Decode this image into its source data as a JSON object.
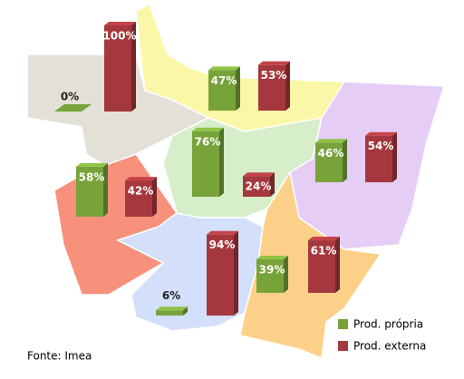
{
  "chart_data": {
    "type": "map-bar",
    "series": [
      {
        "name": "Prod. própria",
        "color": "#77a33a",
        "values": [
          0,
          47,
          76,
          46,
          58,
          6,
          39
        ],
        "value_labels": [
          "0%",
          "47%",
          "76%",
          "46%",
          "58%",
          "6%",
          "39%"
        ]
      },
      {
        "name": "Prod. externa",
        "color": "#a5383e",
        "values": [
          100,
          53,
          24,
          54,
          42,
          94,
          61
        ],
        "value_labels": [
          "100%",
          "53%",
          "24%",
          "54%",
          "42%",
          "94%",
          "61%"
        ]
      }
    ],
    "source": "Fonte: Imea"
  }
}
